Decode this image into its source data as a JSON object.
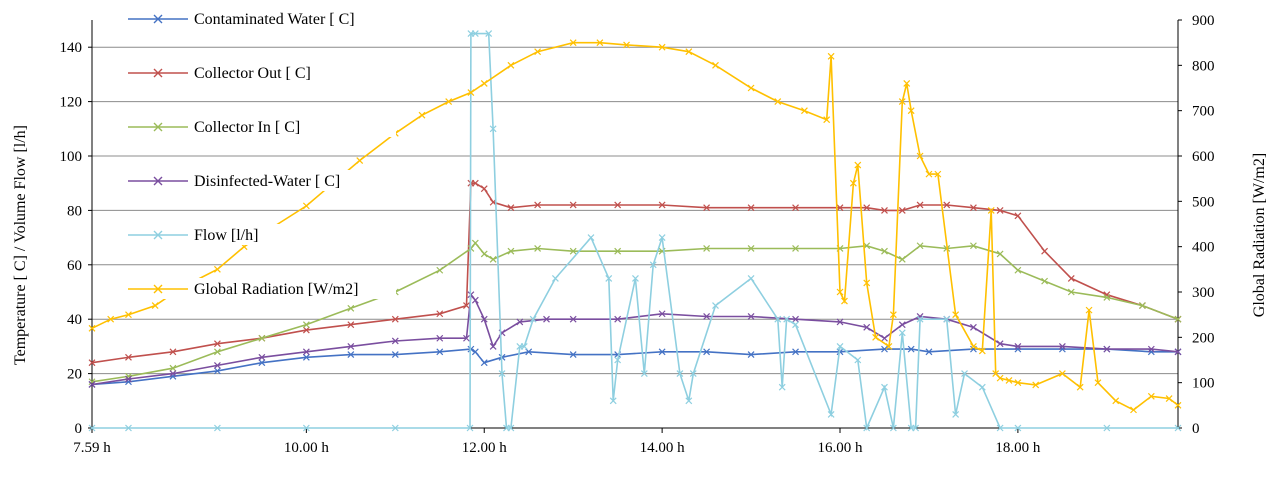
{
  "chart_data": {
    "type": "line",
    "title": "",
    "xlabel": "",
    "ylabel": "Temperature [ C] / Volume Flow [l/h]",
    "ylabel_right": "Global Radiation [W/m2]",
    "ylim": [
      0,
      150
    ],
    "ylim_right": [
      0,
      900
    ],
    "xlim": [
      7.59,
      19.8
    ],
    "x_ticks": [
      {
        "x": 7.59,
        "label": "7.59 h"
      },
      {
        "x": 10,
        "label": "10.00 h"
      },
      {
        "x": 12,
        "label": "12.00 h"
      },
      {
        "x": 14,
        "label": "14.00 h"
      },
      {
        "x": 16,
        "label": "16.00 h"
      },
      {
        "x": 18,
        "label": "18.00 h"
      }
    ],
    "y_ticks": [
      "0",
      "20",
      "40",
      "60",
      "80",
      "100",
      "120",
      "140"
    ],
    "y_ticks_right": [
      "0",
      "100",
      "200",
      "300",
      "400",
      "500",
      "600",
      "700",
      "800",
      "900"
    ],
    "grid": true,
    "legend_position": "left",
    "series": [
      {
        "name": "Contaminated Water [ C]",
        "color": "#4472C4",
        "marker": "x",
        "axis": "left",
        "x": [
          7.59,
          8,
          8.5,
          9,
          9.5,
          10,
          10.5,
          11,
          11.5,
          11.85,
          11.9,
          12.0,
          12.2,
          12.5,
          13,
          13.5,
          14,
          14.5,
          15,
          15.5,
          16,
          16.5,
          16.8,
          17,
          17.5,
          18,
          18.5,
          19,
          19.5,
          19.8
        ],
        "y": [
          16,
          17,
          19,
          21,
          24,
          26,
          27,
          27,
          28,
          29,
          28,
          24,
          26,
          28,
          27,
          27,
          28,
          28,
          27,
          28,
          28,
          29,
          29,
          28,
          29,
          29,
          29,
          29,
          28,
          28
        ]
      },
      {
        "name": "Collector Out [ C]",
        "color": "#C0504D",
        "marker": "x",
        "axis": "left",
        "x": [
          7.59,
          8,
          8.5,
          9,
          9.5,
          10,
          10.5,
          11,
          11.5,
          11.8,
          11.85,
          11.9,
          12.0,
          12.1,
          12.3,
          12.6,
          13,
          13.5,
          14,
          14.5,
          15,
          15.5,
          16,
          16.3,
          16.5,
          16.7,
          16.9,
          17.2,
          17.5,
          17.8,
          18.0,
          18.3,
          18.6,
          19.0,
          19.4,
          19.8
        ],
        "y": [
          24,
          26,
          28,
          31,
          33,
          36,
          38,
          40,
          42,
          45,
          90,
          90,
          88,
          83,
          81,
          82,
          82,
          82,
          82,
          81,
          81,
          81,
          81,
          81,
          80,
          80,
          82,
          82,
          81,
          80,
          78,
          65,
          55,
          49,
          45,
          40
        ]
      },
      {
        "name": "Collector In [ C]",
        "color": "#9BBB59",
        "marker": "x",
        "axis": "left",
        "x": [
          7.59,
          8,
          8.5,
          9,
          9.5,
          10,
          10.5,
          11,
          11.5,
          11.85,
          11.9,
          12.0,
          12.1,
          12.3,
          12.6,
          13,
          13.5,
          14,
          14.5,
          15,
          15.5,
          16,
          16.3,
          16.5,
          16.7,
          16.9,
          17.2,
          17.5,
          17.8,
          18.0,
          18.3,
          18.6,
          19.0,
          19.4,
          19.8
        ],
        "y": [
          17,
          19,
          22,
          28,
          33,
          38,
          44,
          50,
          58,
          66,
          68,
          64,
          62,
          65,
          66,
          65,
          65,
          65,
          66,
          66,
          66,
          66,
          67,
          65,
          62,
          67,
          66,
          67,
          64,
          58,
          54,
          50,
          48,
          45,
          40
        ]
      },
      {
        "name": "Disinfected-Water [ C]",
        "color": "#7A4E9F",
        "marker": "x",
        "axis": "left",
        "x": [
          7.59,
          8,
          8.5,
          9,
          9.5,
          10,
          10.5,
          11,
          11.5,
          11.8,
          11.85,
          11.9,
          12.0,
          12.1,
          12.2,
          12.4,
          12.7,
          13,
          13.5,
          14,
          14.5,
          15,
          15.5,
          16,
          16.3,
          16.5,
          16.7,
          16.9,
          17.2,
          17.5,
          17.8,
          18.0,
          18.5,
          19.0,
          19.5,
          19.8
        ],
        "y": [
          16,
          18,
          20,
          23,
          26,
          28,
          30,
          32,
          33,
          33,
          49,
          47,
          40,
          30,
          35,
          39,
          40,
          40,
          40,
          42,
          41,
          41,
          40,
          39,
          37,
          33,
          38,
          41,
          40,
          37,
          31,
          30,
          30,
          29,
          29,
          28
        ]
      },
      {
        "name": "Flow [l/h]",
        "color": "#8ECFE0",
        "marker": "x",
        "axis": "left",
        "x": [
          7.59,
          8,
          9,
          10,
          11,
          11.84,
          11.85,
          11.9,
          12.05,
          12.1,
          12.2,
          12.25,
          12.3,
          12.4,
          12.45,
          12.55,
          12.8,
          13.2,
          13.4,
          13.45,
          13.5,
          13.7,
          13.8,
          13.9,
          14.0,
          14.2,
          14.3,
          14.35,
          14.6,
          15.0,
          15.3,
          15.35,
          15.4,
          15.5,
          15.9,
          16.0,
          16.2,
          16.3,
          16.5,
          16.6,
          16.7,
          16.8,
          16.85,
          16.9,
          17.2,
          17.3,
          17.4,
          17.6,
          17.8,
          18.0,
          19.0,
          19.8
        ],
        "y": [
          0,
          0,
          0,
          0,
          0,
          0,
          145,
          145,
          145,
          110,
          20,
          0,
          0,
          30,
          30,
          40,
          55,
          70,
          55,
          10,
          25,
          55,
          20,
          60,
          70,
          20,
          10,
          20,
          45,
          55,
          40,
          15,
          40,
          38,
          5,
          30,
          25,
          0,
          15,
          0,
          35,
          0,
          0,
          40,
          40,
          5,
          20,
          15,
          0,
          0,
          0,
          0
        ]
      },
      {
        "name": "Global Radiation [W/m2]",
        "color": "#FFC000",
        "marker": "x",
        "axis": "right",
        "x": [
          7.59,
          7.8,
          8.0,
          8.3,
          8.6,
          9.0,
          9.3,
          9.6,
          10.0,
          10.3,
          10.6,
          11.0,
          11.3,
          11.6,
          11.85,
          12.0,
          12.3,
          12.6,
          13.0,
          13.3,
          13.6,
          14.0,
          14.3,
          14.6,
          15.0,
          15.3,
          15.6,
          15.85,
          15.9,
          16.0,
          16.05,
          16.15,
          16.2,
          16.3,
          16.4,
          16.55,
          16.6,
          16.7,
          16.75,
          16.8,
          16.9,
          17.0,
          17.1,
          17.3,
          17.5,
          17.6,
          17.7,
          17.75,
          17.8,
          17.9,
          18.0,
          18.2,
          18.5,
          18.7,
          18.8,
          18.9,
          19.1,
          19.3,
          19.5,
          19.7,
          19.8
        ],
        "y": [
          220,
          240,
          250,
          270,
          310,
          350,
          400,
          440,
          490,
          540,
          590,
          650,
          690,
          720,
          740,
          760,
          800,
          830,
          850,
          850,
          845,
          840,
          830,
          800,
          750,
          720,
          700,
          680,
          820,
          300,
          280,
          540,
          580,
          320,
          200,
          180,
          250,
          720,
          760,
          700,
          600,
          560,
          560,
          250,
          180,
          170,
          480,
          120,
          110,
          105,
          100,
          95,
          120,
          90,
          260,
          100,
          60,
          40,
          70,
          65,
          50
        ]
      }
    ]
  }
}
